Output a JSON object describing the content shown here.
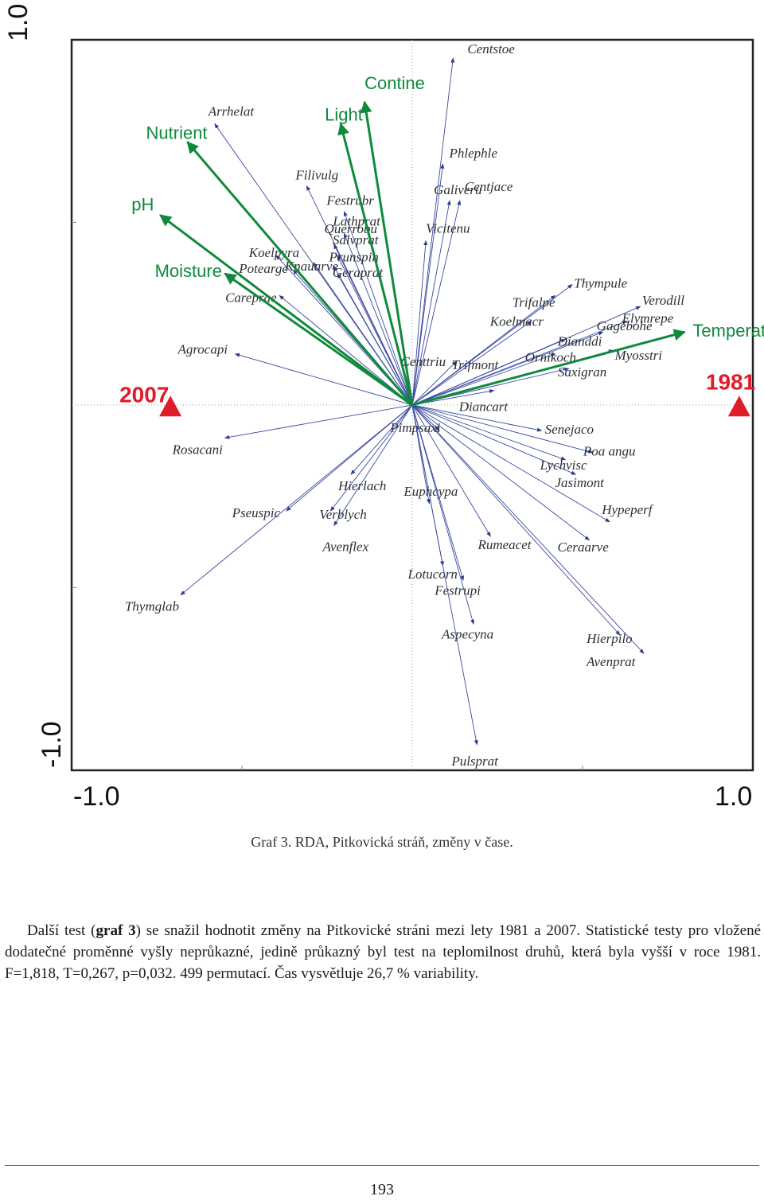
{
  "chart_data": {
    "type": "scatter",
    "title": "",
    "xlim": [
      -1.0,
      1.0
    ],
    "ylim": [
      -1.0,
      1.0
    ],
    "tick_labels": {
      "x_min": "-1.0",
      "x_max": "1.0",
      "y_min": "-1.0",
      "y_max": "1.0"
    },
    "colors": {
      "species": "#2b3a8c",
      "environment": "#0f8a3c",
      "samples": "#e01b2a"
    },
    "species": [
      {
        "name": "Centstoe",
        "x": 0.12,
        "y": 0.95
      },
      {
        "name": "Phlephle",
        "x": 0.09,
        "y": 0.66
      },
      {
        "name": "Centjace",
        "x": 0.14,
        "y": 0.56
      },
      {
        "name": "Galiveru",
        "x": 0.11,
        "y": 0.56
      },
      {
        "name": "Vicitenu",
        "x": 0.04,
        "y": 0.45
      },
      {
        "name": "Arrhelat",
        "x": -0.58,
        "y": 0.77
      },
      {
        "name": "Filivulg",
        "x": -0.31,
        "y": 0.6
      },
      {
        "name": "Festrubr",
        "x": -0.2,
        "y": 0.53
      },
      {
        "name": "Lathprat",
        "x": -0.2,
        "y": 0.47
      },
      {
        "name": "Querrobu",
        "x": -0.23,
        "y": 0.44
      },
      {
        "name": "Salvprat",
        "x": -0.22,
        "y": 0.41
      },
      {
        "name": "Koelpyra",
        "x": -0.4,
        "y": 0.41
      },
      {
        "name": "Knauarve",
        "x": -0.29,
        "y": 0.39
      },
      {
        "name": "Prunspin",
        "x": -0.23,
        "y": 0.38
      },
      {
        "name": "Potearge",
        "x": -0.35,
        "y": 0.37
      },
      {
        "name": "Geraprat",
        "x": -0.22,
        "y": 0.36
      },
      {
        "name": "Careprae",
        "x": -0.39,
        "y": 0.3
      },
      {
        "name": "Agrocapi",
        "x": -0.52,
        "y": 0.14
      },
      {
        "name": "Centtriu",
        "x": -0.02,
        "y": 0.12
      },
      {
        "name": "Trifmont",
        "x": 0.13,
        "y": 0.12
      },
      {
        "name": "Trifalpe",
        "x": 0.42,
        "y": 0.3
      },
      {
        "name": "Thympule",
        "x": 0.47,
        "y": 0.33
      },
      {
        "name": "Koelmacr",
        "x": 0.35,
        "y": 0.23
      },
      {
        "name": "Verodill",
        "x": 0.67,
        "y": 0.27
      },
      {
        "name": "Elymrepe",
        "x": 0.63,
        "y": 0.23
      },
      {
        "name": "Gagebohe",
        "x": 0.56,
        "y": 0.2
      },
      {
        "name": "Dianddi",
        "x": 0.45,
        "y": 0.18
      },
      {
        "name": "Ornikoch",
        "x": 0.42,
        "y": 0.14
      },
      {
        "name": "Myosstri",
        "x": 0.59,
        "y": 0.15
      },
      {
        "name": "Saxigran",
        "x": 0.46,
        "y": 0.1
      },
      {
        "name": "Diancart",
        "x": 0.24,
        "y": 0.04
      },
      {
        "name": "Pimpsaxi",
        "x": 0.08,
        "y": -0.07
      },
      {
        "name": "Senejaco",
        "x": 0.38,
        "y": -0.07
      },
      {
        "name": "Poa angu",
        "x": 0.53,
        "y": -0.13
      },
      {
        "name": "Lychvisc",
        "x": 0.45,
        "y": -0.15
      },
      {
        "name": "Jasimont",
        "x": 0.48,
        "y": -0.19
      },
      {
        "name": "Hierlach",
        "x": -0.18,
        "y": -0.19
      },
      {
        "name": "Rosacani",
        "x": -0.55,
        "y": -0.09
      },
      {
        "name": "Pseuspic",
        "x": -0.37,
        "y": -0.29
      },
      {
        "name": "Verblych",
        "x": -0.24,
        "y": -0.29
      },
      {
        "name": "Avenflex",
        "x": -0.23,
        "y": -0.33
      },
      {
        "name": "Euphcypa",
        "x": 0.05,
        "y": -0.27
      },
      {
        "name": "Rumeacet",
        "x": 0.23,
        "y": -0.36
      },
      {
        "name": "Hypeperf",
        "x": 0.58,
        "y": -0.32
      },
      {
        "name": "Ceraarve",
        "x": 0.52,
        "y": -0.37
      },
      {
        "name": "Lotucorn",
        "x": 0.09,
        "y": -0.44
      },
      {
        "name": "Festrupi",
        "x": 0.15,
        "y": -0.48
      },
      {
        "name": "Thymglab",
        "x": -0.68,
        "y": -0.52
      },
      {
        "name": "Aspecyna",
        "x": 0.18,
        "y": -0.6
      },
      {
        "name": "Hierpilo",
        "x": 0.61,
        "y": -0.63
      },
      {
        "name": "Avenprat",
        "x": 0.68,
        "y": -0.68
      },
      {
        "name": "Pulsprat",
        "x": 0.19,
        "y": -0.93
      }
    ],
    "environment": [
      {
        "name": "Contine",
        "x": -0.14,
        "y": 0.83
      },
      {
        "name": "Light",
        "x": -0.21,
        "y": 0.77
      },
      {
        "name": "Nutrient",
        "x": -0.66,
        "y": 0.72
      },
      {
        "name": "pH",
        "x": -0.74,
        "y": 0.52
      },
      {
        "name": "Moisture",
        "x": -0.55,
        "y": 0.36
      },
      {
        "name": "Temperat",
        "x": 0.8,
        "y": 0.2
      }
    ],
    "samples": [
      {
        "name": "2007",
        "x": -0.71,
        "y": -0.005
      },
      {
        "name": "1981",
        "x": 0.96,
        "y": -0.005
      }
    ]
  },
  "caption": "Graf 3. RDA, Pitkovická stráň, změny v čase.",
  "paragraph": {
    "before": "Další test (",
    "bold": "graf 3",
    "after": ") se snažil hodnotit změny na Pitkovické stráni mezi lety 1981 a 2007. Statistické testy pro vložené dodatečné proměnné vyšly neprůkazné, jedině průkazný byl test na teplomilnost druhů, která byla vyšší v roce 1981. F=1,818, T=0,267, p=0,032. 499 permutací. Čas vysvětluje 26,7 % variability."
  },
  "page_number": "193"
}
